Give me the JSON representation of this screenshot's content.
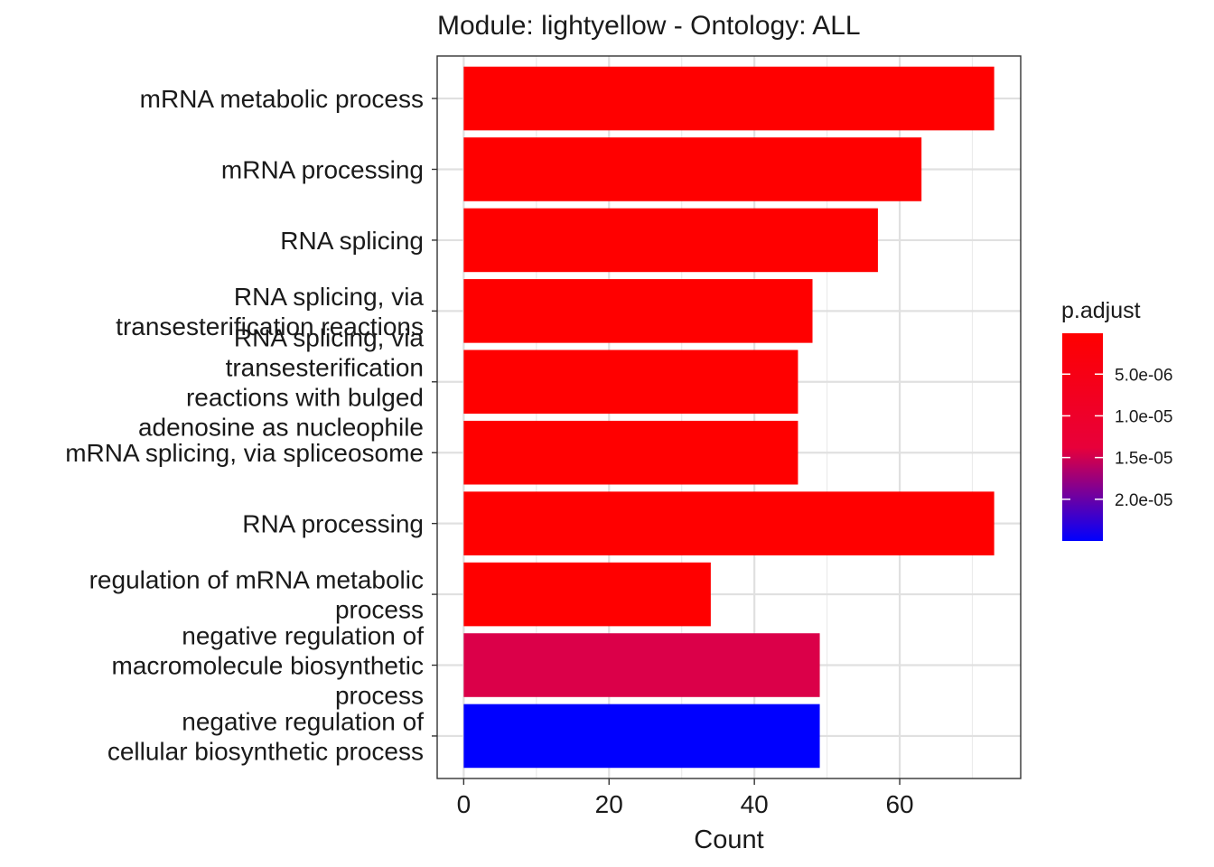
{
  "chart_data": {
    "type": "bar",
    "orientation": "horizontal",
    "title": "Module: lightyellow - Ontology: ALL",
    "xlabel": "Count",
    "ylabel": "",
    "xlim": [
      -3.65,
      76.65
    ],
    "x_ticks": [
      "0",
      "20",
      "40",
      "60"
    ],
    "x_tick_values": [
      0,
      20,
      40,
      60
    ],
    "grid": true,
    "categories": [
      [
        "mRNA metabolic process"
      ],
      [
        "mRNA processing"
      ],
      [
        "RNA splicing"
      ],
      [
        "RNA splicing, via",
        "transesterification reactions"
      ],
      [
        "RNA splicing, via",
        "transesterification",
        "reactions with bulged",
        "adenosine as nucleophile"
      ],
      [
        "mRNA splicing, via spliceosome"
      ],
      [
        "RNA processing"
      ],
      [
        "regulation of mRNA metabolic",
        "process"
      ],
      [
        "negative regulation of",
        "macromolecule biosynthetic",
        "process"
      ],
      [
        "negative regulation of",
        "cellular biosynthetic process"
      ]
    ],
    "values": [
      73,
      63,
      57,
      48,
      46,
      46,
      73,
      34,
      49,
      49
    ],
    "p_adjust": [
      1e-07,
      1e-07,
      1e-07,
      1e-07,
      1e-07,
      1e-07,
      1e-07,
      1e-07,
      6.6e-06,
      2.5e-05
    ],
    "bar_colors": [
      "#FF0000",
      "#FF0000",
      "#FF0000",
      "#FF0000",
      "#FF0000",
      "#FF0000",
      "#FF0000",
      "#FF0000",
      "#DB0049",
      "#0000FF"
    ],
    "legend": {
      "title": "p.adjust",
      "placement": "right",
      "type": "colorbar",
      "low_color": "#FF0000",
      "high_color": "#0000FF",
      "range": [
        1e-07,
        2.5e-05
      ],
      "ticks": [
        "5.0e-06",
        "1.0e-05",
        "1.5e-05",
        "2.0e-05"
      ],
      "tick_values": [
        5e-06,
        1e-05,
        1.5e-05,
        2e-05
      ]
    }
  }
}
